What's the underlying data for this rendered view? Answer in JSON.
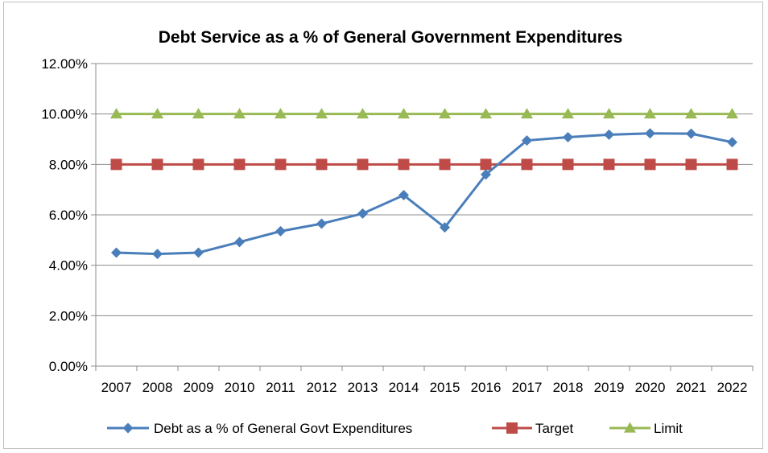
{
  "chart_data": {
    "type": "line",
    "title": "Debt Service as a % of General Government Expenditures",
    "xlabel": "",
    "ylabel": "",
    "categories": [
      "2007",
      "2008",
      "2009",
      "2010",
      "2011",
      "2012",
      "2013",
      "2014",
      "2015",
      "2016",
      "2017",
      "2018",
      "2019",
      "2020",
      "2021",
      "2022"
    ],
    "ylim": [
      0,
      12
    ],
    "yticks": [
      "0.00%",
      "2.00%",
      "4.00%",
      "6.00%",
      "8.00%",
      "10.00%",
      "12.00%"
    ],
    "grid": true,
    "legend_position": "bottom",
    "series": [
      {
        "name": "Debt as a % of General Govt Expenditures",
        "color": "#4a7ebb",
        "marker": "diamond",
        "values": [
          4.5,
          4.45,
          4.5,
          4.92,
          5.35,
          5.65,
          6.05,
          6.78,
          5.5,
          7.6,
          8.95,
          9.08,
          9.18,
          9.23,
          9.22,
          8.88
        ]
      },
      {
        "name": "Target",
        "color": "#be4b48",
        "marker": "square",
        "values": [
          8,
          8,
          8,
          8,
          8,
          8,
          8,
          8,
          8,
          8,
          8,
          8,
          8,
          8,
          8,
          8
        ]
      },
      {
        "name": "Limit",
        "color": "#98b954",
        "marker": "triangle",
        "values": [
          10,
          10,
          10,
          10,
          10,
          10,
          10,
          10,
          10,
          10,
          10,
          10,
          10,
          10,
          10,
          10
        ]
      }
    ]
  }
}
